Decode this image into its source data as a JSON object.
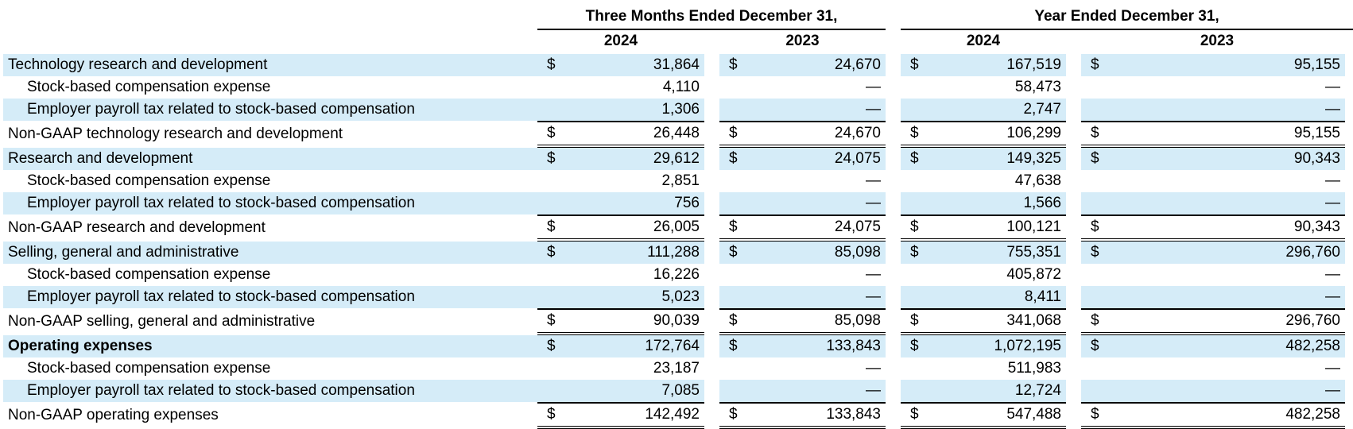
{
  "header": {
    "group1": "Three Months Ended December 31,",
    "group2": "Year Ended December 31,",
    "years": [
      "2024",
      "2023",
      "2024",
      "2023"
    ]
  },
  "rows": [
    {
      "label": "Technology research and development",
      "indent": false,
      "bold": false,
      "dollar": true,
      "values": [
        "31,864",
        "24,670",
        "167,519",
        "95,155"
      ]
    },
    {
      "label": "Stock-based compensation expense",
      "indent": true,
      "bold": false,
      "dollar": false,
      "values": [
        "4,110",
        "—",
        "58,473",
        "—"
      ]
    },
    {
      "label": "Employer payroll tax related to stock-based compensation",
      "indent": true,
      "bold": false,
      "dollar": false,
      "values": [
        "1,306",
        "—",
        "2,747",
        "—"
      ]
    },
    {
      "label": "Non-GAAP technology research and development",
      "indent": false,
      "bold": false,
      "dollar": true,
      "values": [
        "26,448",
        "24,670",
        "106,299",
        "95,155"
      ]
    },
    {
      "label": "Research and development",
      "indent": false,
      "bold": false,
      "dollar": true,
      "values": [
        "29,612",
        "24,075",
        "149,325",
        "90,343"
      ]
    },
    {
      "label": "Stock-based compensation expense",
      "indent": true,
      "bold": false,
      "dollar": false,
      "values": [
        "2,851",
        "—",
        "47,638",
        "—"
      ]
    },
    {
      "label": "Employer payroll tax related to stock-based compensation",
      "indent": true,
      "bold": false,
      "dollar": false,
      "values": [
        "756",
        "—",
        "1,566",
        "—"
      ]
    },
    {
      "label": "Non-GAAP research and development",
      "indent": false,
      "bold": false,
      "dollar": true,
      "values": [
        "26,005",
        "24,075",
        "100,121",
        "90,343"
      ]
    },
    {
      "label": "Selling, general and administrative",
      "indent": false,
      "bold": false,
      "dollar": true,
      "values": [
        "111,288",
        "85,098",
        "755,351",
        "296,760"
      ]
    },
    {
      "label": "Stock-based compensation expense",
      "indent": true,
      "bold": false,
      "dollar": false,
      "values": [
        "16,226",
        "—",
        "405,872",
        "—"
      ]
    },
    {
      "label": "Employer payroll tax related to stock-based compensation",
      "indent": true,
      "bold": false,
      "dollar": false,
      "values": [
        "5,023",
        "—",
        "8,411",
        "—"
      ]
    },
    {
      "label": "Non-GAAP selling, general and administrative",
      "indent": false,
      "bold": false,
      "dollar": true,
      "values": [
        "90,039",
        "85,098",
        "341,068",
        "296,760"
      ]
    },
    {
      "label": "Operating expenses",
      "indent": false,
      "bold": true,
      "dollar": true,
      "values": [
        "172,764",
        "133,843",
        "1,072,195",
        "482,258"
      ]
    },
    {
      "label": "Stock-based compensation expense",
      "indent": true,
      "bold": false,
      "dollar": false,
      "values": [
        "23,187",
        "—",
        "511,983",
        "—"
      ]
    },
    {
      "label": "Employer payroll tax related to stock-based compensation",
      "indent": true,
      "bold": false,
      "dollar": false,
      "values": [
        "7,085",
        "—",
        "12,724",
        "—"
      ]
    },
    {
      "label": "Non-GAAP operating expenses",
      "indent": false,
      "bold": false,
      "dollar": true,
      "values": [
        "142,492",
        "133,843",
        "547,488",
        "482,258"
      ]
    }
  ],
  "currency_symbol": "$",
  "colors": {
    "row_shade": "#d5ecf8",
    "text": "#000000"
  }
}
